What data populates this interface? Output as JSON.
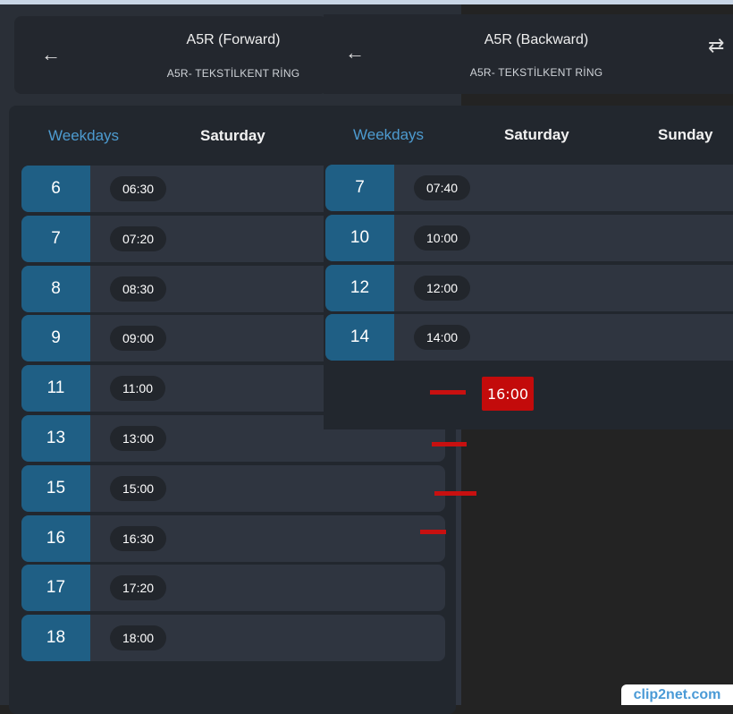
{
  "forward": {
    "title": "A5R (Forward)",
    "subtitle": "A5R- TEKSTİLKENT RİNG",
    "tabs": [
      "Weekdays",
      "Saturday"
    ],
    "rows": [
      {
        "hour": "6",
        "times": [
          "06:30"
        ]
      },
      {
        "hour": "7",
        "times": [
          "07:20"
        ]
      },
      {
        "hour": "8",
        "times": [
          "08:30"
        ]
      },
      {
        "hour": "9",
        "times": [
          "09:00"
        ]
      },
      {
        "hour": "11",
        "times": [
          "11:00"
        ]
      },
      {
        "hour": "13",
        "times": [
          "13:00"
        ]
      },
      {
        "hour": "15",
        "times": [
          "15:00"
        ]
      },
      {
        "hour": "16",
        "times": [
          "16:30"
        ]
      },
      {
        "hour": "17",
        "times": [
          "17:20"
        ]
      },
      {
        "hour": "18",
        "times": [
          "18:00"
        ]
      }
    ]
  },
  "backward": {
    "title": "A5R (Backward)",
    "subtitle": "A5R- TEKSTİLKENT RİNG",
    "tabs": [
      "Weekdays",
      "Saturday",
      "Sunday"
    ],
    "rows": [
      {
        "hour": "7",
        "times": [
          "07:40"
        ]
      },
      {
        "hour": "10",
        "times": [
          "10:00"
        ]
      },
      {
        "hour": "12",
        "times": [
          "12:00"
        ]
      },
      {
        "hour": "14",
        "times": [
          "14:00"
        ]
      }
    ]
  },
  "annotation": {
    "label": "16:00",
    "color": "#c30b0b"
  },
  "watermark": "clip2net.com",
  "colors": {
    "accent": "#4d9bd0",
    "hour_cell": "#1f5f85"
  }
}
